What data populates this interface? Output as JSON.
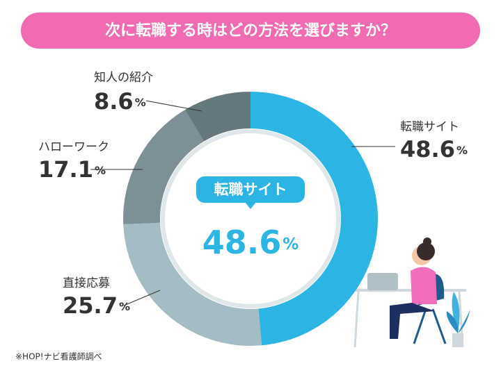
{
  "chart_data": {
    "type": "donut",
    "title": "次に転職する時はどの方法を選びますか？",
    "categories": [
      "転職サイト",
      "直接応募",
      "ハローワーク",
      "知人の紹介"
    ],
    "values": [
      48.6,
      25.7,
      17.1,
      8.6
    ],
    "unit": "%",
    "colors": [
      "#2cb4e2",
      "#a4bcc4",
      "#7e9097",
      "#65787d"
    ],
    "highlight": 0,
    "source": "※HOP!ナビ看護師調べ"
  }
}
